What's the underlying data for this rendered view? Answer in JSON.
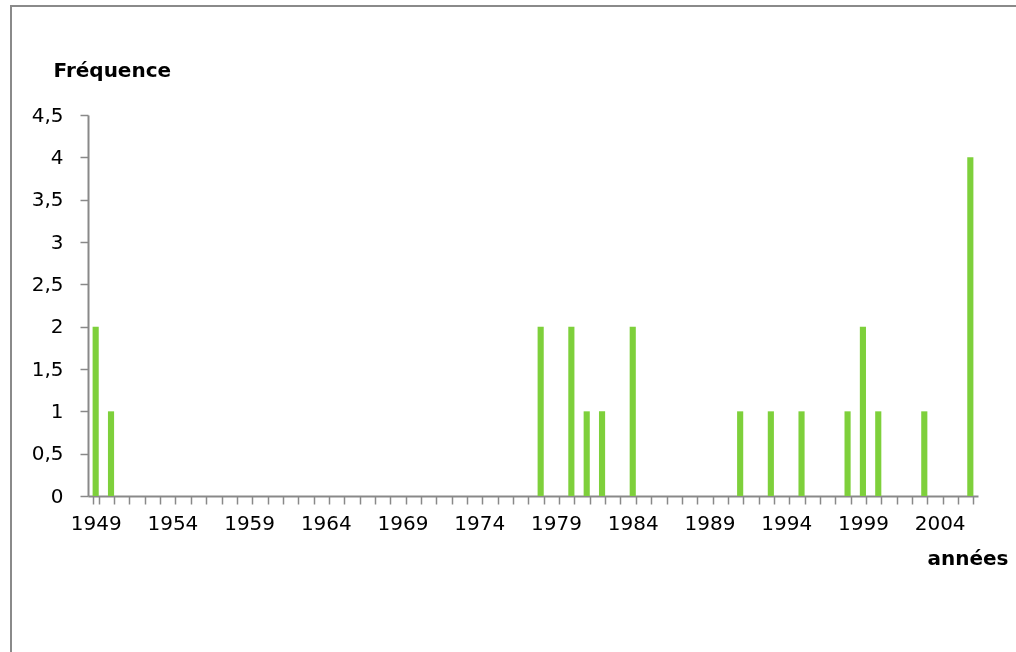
{
  "chart_data": {
    "type": "bar",
    "xlabel": "années",
    "ylabel": "Fréquence",
    "categories": [
      "1949",
      null,
      null,
      null,
      null,
      "1954",
      null,
      null,
      null,
      null,
      "1959",
      null,
      null,
      null,
      null,
      "1964",
      null,
      null,
      null,
      null,
      "1969",
      null,
      null,
      null,
      null,
      "1974",
      null,
      null,
      null,
      null,
      "1979",
      null,
      null,
      null,
      null,
      "1984",
      null,
      null,
      null,
      null,
      "1989",
      null,
      null,
      null,
      null,
      "1994",
      null,
      null,
      null,
      null,
      "1999",
      null,
      null,
      null,
      null,
      "2004",
      null,
      null
    ],
    "values": [
      2,
      1,
      null,
      null,
      null,
      null,
      null,
      null,
      null,
      null,
      null,
      null,
      null,
      null,
      null,
      null,
      null,
      null,
      null,
      null,
      null,
      null,
      null,
      null,
      null,
      null,
      null,
      null,
      null,
      2,
      null,
      2,
      1,
      1,
      null,
      2,
      null,
      null,
      null,
      null,
      null,
      null,
      1,
      null,
      1,
      null,
      1,
      null,
      null,
      1,
      2,
      1,
      null,
      null,
      1,
      null,
      null,
      4
    ],
    "color": "#7ed03b",
    "ylim": [
      0,
      4.5
    ],
    "yticks": [
      0,
      {
        "value": 0.5,
        "label": "0,5"
      },
      1,
      {
        "value": 1.5,
        "label": "1,5"
      },
      2,
      {
        "value": 2.5,
        "label": "2,5"
      },
      3,
      {
        "value": 3.5,
        "label": "3,5"
      },
      4,
      {
        "value": 4.5,
        "label": "4,5"
      }
    ]
  }
}
